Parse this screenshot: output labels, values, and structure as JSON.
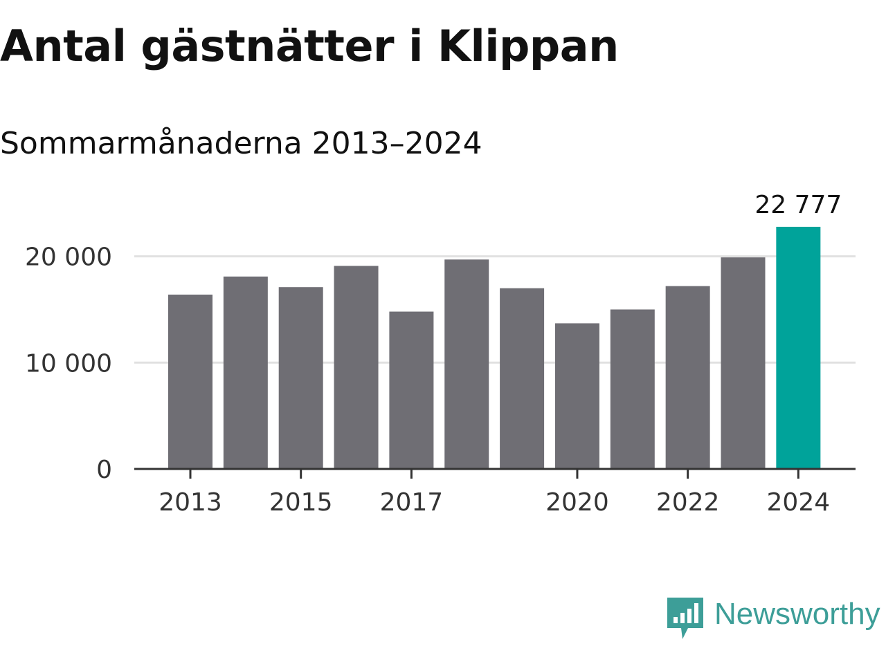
{
  "chart_data": {
    "type": "bar",
    "title": "Antal gästnätter i Klippan",
    "subtitle": "Sommarmånaderna 2013–2024",
    "categories": [
      "2013",
      "2014",
      "2015",
      "2016",
      "2017",
      "2018",
      "2019",
      "2020",
      "2021",
      "2022",
      "2023",
      "2024"
    ],
    "values": [
      16400,
      18100,
      17100,
      19100,
      14800,
      19700,
      17000,
      13700,
      15000,
      17200,
      19900,
      22777
    ],
    "x_tick_labels": [
      "2013",
      "2015",
      "2017",
      "2020",
      "2022",
      "2024"
    ],
    "y_ticks": [
      0,
      10000,
      20000
    ],
    "y_tick_labels": [
      "0",
      "10 000",
      "20 000"
    ],
    "ylim": [
      0,
      23500
    ],
    "grid": true,
    "highlight_index": 11,
    "highlight_label": "22 777",
    "colors": {
      "bar": "#6f6e74",
      "highlight": "#00a39a",
      "grid": "#e1e1e1",
      "axis": "#333333",
      "tick_label": "#333333"
    },
    "xlabel": "",
    "ylabel": ""
  },
  "branding": {
    "logo_text": "Newsworthy",
    "logo_icon": "newsworthy-logo-icon",
    "logo_color": "#3d9e98"
  }
}
